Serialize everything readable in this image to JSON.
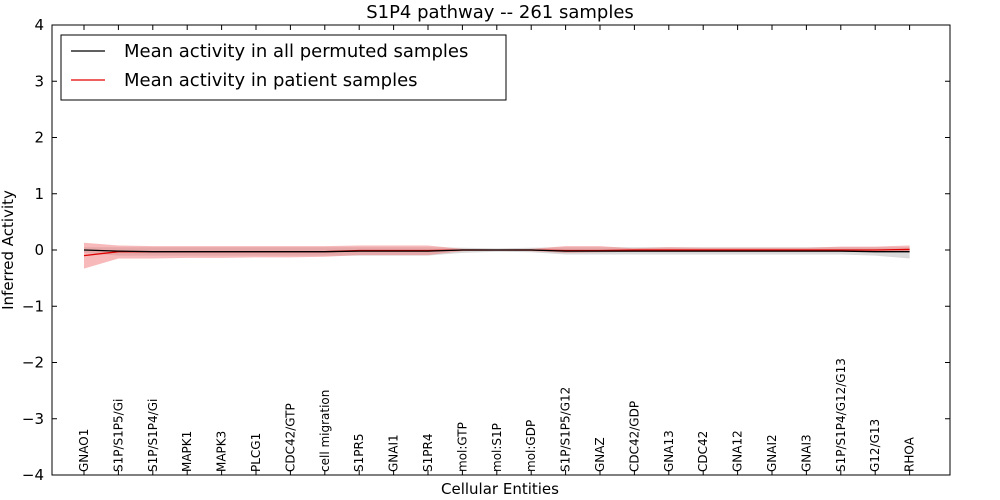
{
  "chart_data": {
    "type": "line",
    "title": "S1P4 pathway -- 261 samples",
    "xlabel": "Cellular Entities",
    "ylabel": "Inferred Activity",
    "ylim": [
      -4,
      4
    ],
    "yticks": [
      "−4",
      "−3",
      "−2",
      "−1",
      "0",
      "1",
      "2",
      "3",
      "4"
    ],
    "ytick_values": [
      -4,
      -3,
      -2,
      -1,
      0,
      1,
      2,
      3,
      4
    ],
    "legend_position": "top-left",
    "categories": [
      "GNAO1",
      "S1P/S1P5/Gi",
      "S1P/S1P4/Gi",
      "MAPK1",
      "MAPK3",
      "PLCG1",
      "CDC42/GTP",
      "cell migration",
      "S1PR5",
      "GNAI1",
      "S1PR4",
      "mol:GTP",
      "mol:S1P",
      "mol:GDP",
      "S1P/S1P5/G12",
      "GNAZ",
      "CDC42/GDP",
      "GNA13",
      "CDC42",
      "GNA12",
      "GNAI2",
      "GNAI3",
      "S1P/S1P4/G12/G13",
      "G12/G13",
      "RHOA"
    ],
    "series": [
      {
        "name": "Mean activity in all permuted samples",
        "color": "#000000",
        "band_color": "#bbbbbb",
        "values": [
          0.0,
          -0.02,
          -0.03,
          -0.03,
          -0.03,
          -0.03,
          -0.03,
          -0.03,
          -0.02,
          -0.02,
          -0.02,
          0.0,
          0.0,
          0.0,
          -0.02,
          -0.02,
          -0.02,
          -0.02,
          -0.02,
          -0.02,
          -0.02,
          -0.02,
          -0.02,
          -0.03,
          -0.03
        ],
        "lower": [
          -0.05,
          -0.1,
          -0.1,
          -0.1,
          -0.1,
          -0.1,
          -0.1,
          -0.1,
          -0.1,
          -0.1,
          -0.1,
          -0.05,
          -0.03,
          -0.04,
          -0.08,
          -0.08,
          -0.08,
          -0.08,
          -0.08,
          -0.08,
          -0.08,
          -0.08,
          -0.08,
          -0.1,
          -0.15
        ],
        "upper": [
          0.05,
          0.05,
          0.05,
          0.05,
          0.05,
          0.05,
          0.05,
          0.05,
          0.05,
          0.05,
          0.05,
          0.04,
          0.03,
          0.04,
          0.05,
          0.05,
          0.05,
          0.05,
          0.05,
          0.05,
          0.05,
          0.05,
          0.05,
          0.05,
          0.05
        ]
      },
      {
        "name": "Mean activity in patient samples",
        "color": "#e00000",
        "band_color": "#f08080",
        "values": [
          -0.1,
          -0.03,
          -0.03,
          -0.03,
          -0.03,
          -0.03,
          -0.03,
          -0.03,
          -0.01,
          -0.01,
          -0.01,
          0.0,
          0.0,
          0.0,
          -0.01,
          -0.01,
          0.0,
          0.0,
          0.0,
          0.0,
          0.0,
          0.0,
          0.0,
          0.0,
          0.01
        ],
        "lower": [
          -0.33,
          -0.15,
          -0.15,
          -0.14,
          -0.14,
          -0.13,
          -0.13,
          -0.12,
          -0.09,
          -0.09,
          -0.09,
          -0.02,
          -0.01,
          -0.02,
          -0.05,
          -0.04,
          -0.03,
          -0.03,
          -0.03,
          -0.03,
          -0.03,
          -0.03,
          -0.03,
          -0.03,
          -0.03
        ],
        "upper": [
          0.13,
          0.08,
          0.07,
          0.07,
          0.07,
          0.07,
          0.07,
          0.07,
          0.08,
          0.08,
          0.08,
          0.02,
          0.01,
          0.02,
          0.07,
          0.07,
          0.03,
          0.05,
          0.04,
          0.04,
          0.04,
          0.04,
          0.06,
          0.06,
          0.08
        ]
      }
    ]
  }
}
